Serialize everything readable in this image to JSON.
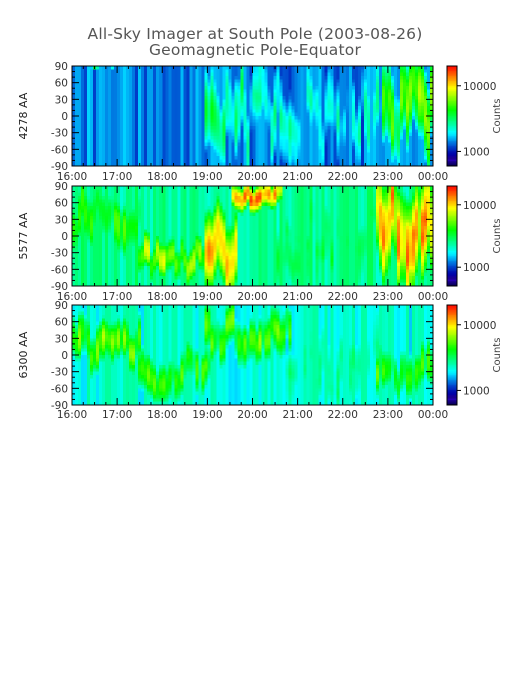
{
  "title": "All-Sky Imager at South Pole (2003-08-26)",
  "subtitle": "Geomagnetic Pole-Equator",
  "chart_data": [
    {
      "type": "heatmap",
      "panel": "4278",
      "ylabel": "4278 AA",
      "colorbar_label": "Counts",
      "colorbar_ticks": [
        "10000",
        "1000"
      ],
      "colorbar_tick_values": [
        10000,
        1000
      ],
      "color_range": [
        600,
        20000
      ],
      "ylim": [
        -90,
        90
      ],
      "y_ticks": [
        "90",
        "60",
        "30",
        "0",
        "-30",
        "-60",
        "-90"
      ],
      "x_ticks": [
        "16:00",
        "17:00",
        "18:00",
        "19:00",
        "20:00",
        "21:00",
        "22:00",
        "23:00",
        "00:00"
      ],
      "base_level": 1400,
      "events": [
        {
          "t0": 16.0,
          "t1": 16.9,
          "lat": 90,
          "width": 8,
          "counts": 3500
        },
        {
          "t0": 19.0,
          "t1": 19.9,
          "lat": 0,
          "width": 150,
          "counts": 3500
        },
        {
          "t0": 20.0,
          "t1": 22.8,
          "lat": 0,
          "width": 150,
          "counts": 2200
        },
        {
          "t0": 22.9,
          "t1": 24.0,
          "lat": 20,
          "width": 140,
          "counts": 7000
        }
      ]
    },
    {
      "type": "heatmap",
      "panel": "5577",
      "ylabel": "5577 AA",
      "colorbar_label": "Counts",
      "colorbar_ticks": [
        "10000",
        "1000"
      ],
      "colorbar_tick_values": [
        10000,
        1000
      ],
      "color_range": [
        500,
        20000
      ],
      "ylim": [
        -90,
        90
      ],
      "y_ticks": [
        "90",
        "60",
        "30",
        "0",
        "-30",
        "-60",
        "-90"
      ],
      "x_ticks": [
        "16:00",
        "17:00",
        "18:00",
        "19:00",
        "20:00",
        "21:00",
        "22:00",
        "23:00",
        "00:00"
      ],
      "base_level": 2500,
      "events": [
        {
          "t0": 16.0,
          "t1": 17.5,
          "lat": 40,
          "width": 100,
          "counts": 4500
        },
        {
          "t0": 17.5,
          "t1": 18.9,
          "lat": -40,
          "width": 60,
          "counts": 8000
        },
        {
          "t0": 19.0,
          "t1": 19.6,
          "lat": -20,
          "width": 120,
          "counts": 15000
        },
        {
          "t0": 19.6,
          "t1": 20.6,
          "lat": 70,
          "width": 40,
          "counts": 15000
        },
        {
          "t0": 20.6,
          "t1": 22.8,
          "lat": 0,
          "width": 150,
          "counts": 2500
        },
        {
          "t0": 22.8,
          "t1": 24.0,
          "lat": 20,
          "width": 150,
          "counts": 15000
        }
      ]
    },
    {
      "type": "heatmap",
      "panel": "6300",
      "ylabel": "6300 AA",
      "colorbar_label": "Counts",
      "colorbar_ticks": [
        "10000",
        "1000"
      ],
      "colorbar_tick_values": [
        10000,
        1000
      ],
      "color_range": [
        600,
        20000
      ],
      "ylim": [
        -90,
        90
      ],
      "y_ticks": [
        "90",
        "60",
        "30",
        "0",
        "-30",
        "-60",
        "-90"
      ],
      "x_ticks": [
        "16:00",
        "17:00",
        "18:00",
        "19:00",
        "20:00",
        "21:00",
        "22:00",
        "23:00",
        "00:00"
      ],
      "base_level": 2200,
      "events": [
        {
          "t0": 16.0,
          "t1": 17.5,
          "lat": 20,
          "width": 80,
          "counts": 6000
        },
        {
          "t0": 17.5,
          "t1": 19.0,
          "lat": -30,
          "width": 80,
          "counts": 5000
        },
        {
          "t0": 19.0,
          "t1": 20.8,
          "lat": 40,
          "width": 80,
          "counts": 6000
        },
        {
          "t0": 20.8,
          "t1": 22.8,
          "lat": 0,
          "width": 150,
          "counts": 2300
        },
        {
          "t0": 22.8,
          "t1": 24.0,
          "lat": -40,
          "width": 80,
          "counts": 5000
        }
      ]
    }
  ]
}
